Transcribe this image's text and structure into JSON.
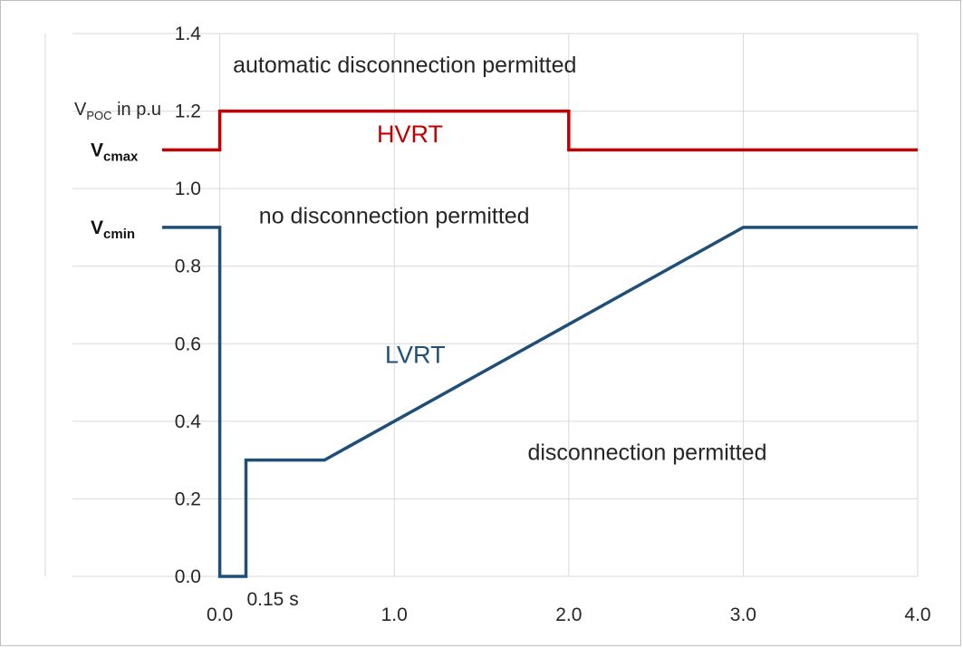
{
  "chart_data": {
    "type": "line",
    "ylabel": {
      "main": "V",
      "sub": "POC",
      "rest": " in p.u"
    },
    "x_ticks": [
      "0.0",
      "1.0",
      "2.0",
      "3.0",
      "4.0"
    ],
    "x_tick_values": [
      0,
      1,
      2,
      3,
      4
    ],
    "y_ticks": [
      "0.0",
      "0.2",
      "0.4",
      "0.6",
      "0.8",
      "1.0",
      "1.2",
      "1.4"
    ],
    "y_tick_values": [
      0,
      0.2,
      0.4,
      0.6,
      0.8,
      1.0,
      1.2,
      1.4
    ],
    "xlim": [
      -1.0,
      4.0
    ],
    "ylim": [
      0,
      1.4
    ],
    "grid": true,
    "series": [
      {
        "name": "HVRT",
        "color": "#c00000",
        "points": [
          [
            -0.33,
            1.1
          ],
          [
            0.0,
            1.1
          ],
          [
            0.0,
            1.2
          ],
          [
            2.0,
            1.2
          ],
          [
            2.0,
            1.1
          ],
          [
            4.0,
            1.1
          ]
        ]
      },
      {
        "name": "LVRT",
        "color": "#1f4e79",
        "points": [
          [
            -0.33,
            0.9
          ],
          [
            0.0,
            0.9
          ],
          [
            0.0,
            0.0
          ],
          [
            0.15,
            0.0
          ],
          [
            0.15,
            0.3
          ],
          [
            0.6,
            0.3
          ],
          [
            3.0,
            0.9
          ],
          [
            4.0,
            0.9
          ]
        ]
      }
    ],
    "curve_labels": [
      {
        "text": "HVRT",
        "color": "#c00000",
        "x": 1.09,
        "y": 1.12
      },
      {
        "text": "LVRT",
        "color": "#1f4e79",
        "x": 1.12,
        "y": 0.55
      }
    ],
    "annotations": [
      {
        "text": "0.15 s",
        "kind": "x-annotation",
        "x": 0.15
      }
    ],
    "regions": [
      {
        "text": "automatic disconnection permitted",
        "x": 1.06,
        "y": 1.3
      },
      {
        "text": "no disconnection permitted",
        "x": 1.0,
        "y": 0.91
      },
      {
        "text": "disconnection permitted",
        "x": 2.45,
        "y": 0.3
      }
    ],
    "reference_levels": [
      {
        "main": "V",
        "sub": "cmax",
        "y": 1.1
      },
      {
        "main": "V",
        "sub": "cmin",
        "y": 0.9
      }
    ]
  }
}
